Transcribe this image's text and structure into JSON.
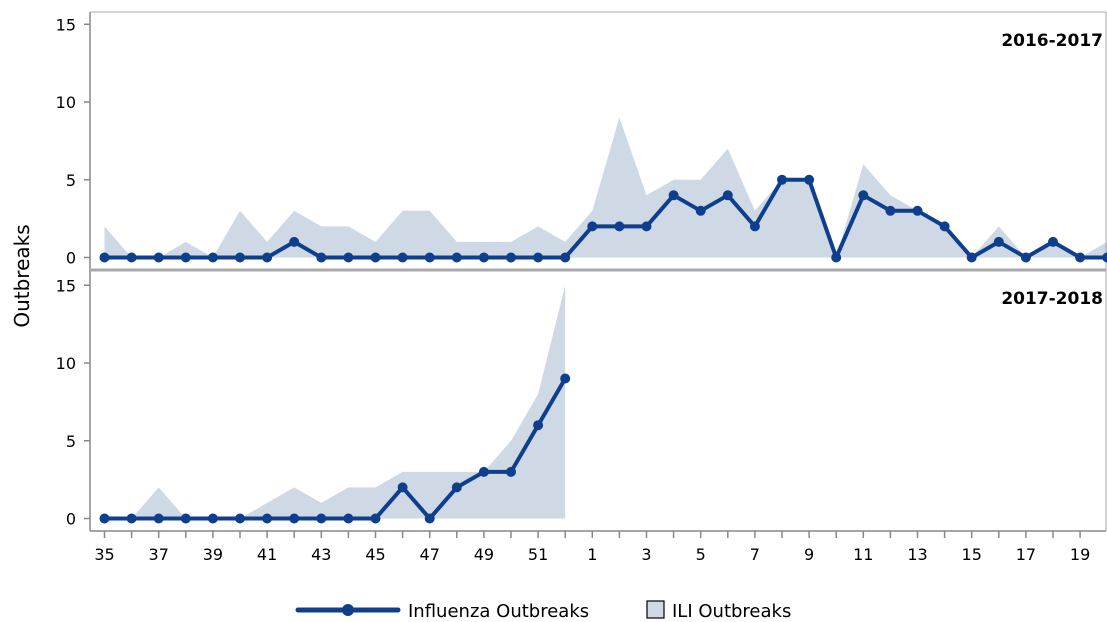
{
  "chart_data": {
    "type": "line",
    "ylabel": "Outbreaks",
    "xlabel": "",
    "x_ticks": [
      "35",
      "37",
      "39",
      "41",
      "43",
      "45",
      "47",
      "49",
      "51",
      "1",
      "3",
      "5",
      "7",
      "9",
      "11",
      "13",
      "15",
      "17",
      "19"
    ],
    "weeks": [
      "35",
      "36",
      "37",
      "38",
      "39",
      "40",
      "41",
      "42",
      "43",
      "44",
      "45",
      "46",
      "47",
      "48",
      "49",
      "50",
      "51",
      "52",
      "1",
      "2",
      "3",
      "4",
      "5",
      "6",
      "7",
      "8",
      "9",
      "10",
      "11",
      "12",
      "13",
      "14",
      "15",
      "16",
      "17",
      "18",
      "19",
      "20"
    ],
    "ylim": [
      0,
      15
    ],
    "y_ticks": [
      0,
      5,
      10,
      15
    ],
    "legend": {
      "position": "bottom",
      "items": [
        {
          "label": "Influenza Outbreaks",
          "type": "line-marker",
          "color": "#0f3f8c"
        },
        {
          "label": "ILI Outbreaks",
          "type": "area",
          "color": "#cfd9e6"
        }
      ]
    },
    "panels": [
      {
        "title": "2016-2017",
        "series": [
          {
            "name": "Influenza Outbreaks",
            "values": [
              0,
              0,
              0,
              0,
              0,
              0,
              0,
              1,
              0,
              0,
              0,
              0,
              0,
              0,
              0,
              0,
              0,
              0,
              2,
              2,
              2,
              4,
              3,
              4,
              2,
              5,
              5,
              0,
              4,
              3,
              3,
              2,
              0,
              1,
              0,
              1,
              0,
              0
            ]
          },
          {
            "name": "ILI Outbreaks",
            "values": [
              2,
              0,
              0,
              1,
              0,
              3,
              1,
              3,
              2,
              2,
              1,
              3,
              3,
              1,
              1,
              1,
              2,
              1,
              3,
              9,
              4,
              5,
              5,
              7,
              3,
              5,
              5,
              0,
              6,
              4,
              3,
              2,
              0,
              2,
              0,
              1,
              0,
              1
            ]
          }
        ]
      },
      {
        "title": "2017-2018",
        "series": [
          {
            "name": "Influenza Outbreaks",
            "values": [
              0,
              0,
              0,
              0,
              0,
              0,
              0,
              0,
              0,
              0,
              0,
              2,
              0,
              2,
              3,
              3,
              6,
              9
            ]
          },
          {
            "name": "ILI Outbreaks",
            "values": [
              0,
              0,
              2,
              0,
              0,
              0,
              1,
              2,
              1,
              2,
              2,
              3,
              3,
              3,
              3,
              5,
              8,
              15
            ]
          }
        ]
      }
    ]
  }
}
